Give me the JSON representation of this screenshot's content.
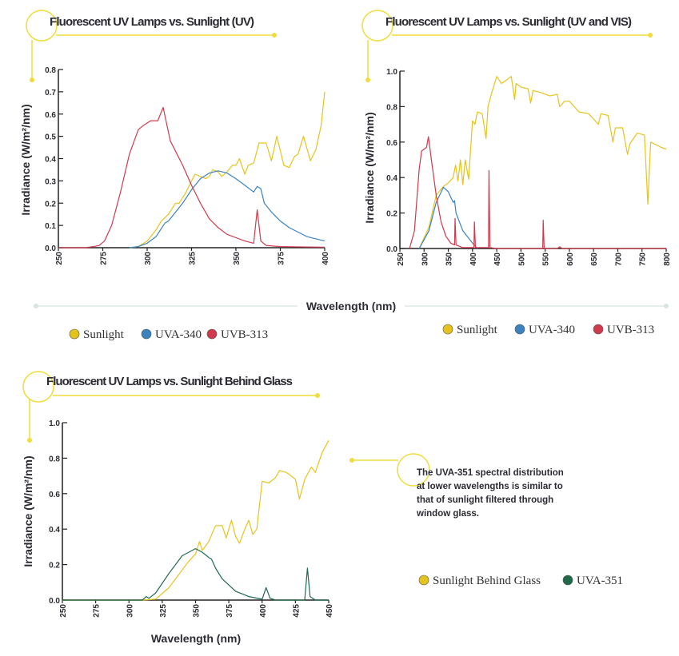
{
  "colors": {
    "sunlight": "#e6c31c",
    "uva340": "#3b82bf",
    "uvb313": "#cf3a4c",
    "uva351": "#1f6a4a",
    "accent": "#f0dc3c"
  },
  "shared_xlabel": "Wavelength (nm)",
  "annotation": {
    "lines": [
      "The UVA-351 spectral distribution",
      "at lower wavelengths is similar to",
      "that of sunlight filtered through",
      "window glass."
    ]
  },
  "chart_data": [
    {
      "type": "line",
      "title": "Fluorescent UV Lamps vs. Sunlight (UV)",
      "xlabel": "",
      "ylabel": "Irradiance (W/m²/nm)",
      "xlim": [
        250,
        400
      ],
      "ylim": [
        0,
        0.8
      ],
      "xticks": [
        "250",
        "275",
        "300",
        "325",
        "350",
        "375",
        "400"
      ],
      "yticks": [
        "0.0",
        "0.1",
        "0.2",
        "0.3",
        "0.4",
        "0.5",
        "0.6",
        "0.7",
        "0.8"
      ],
      "grid": false,
      "legend": "bottom",
      "series": [
        {
          "name": "Sunlight",
          "color": "#e6c31c",
          "x": [
            290,
            295,
            300,
            305,
            308,
            312,
            316,
            318,
            322,
            325,
            327,
            330,
            333,
            335,
            337,
            340,
            342,
            345,
            348,
            350,
            352,
            355,
            357,
            360,
            363,
            367,
            370,
            373,
            377,
            380,
            383,
            385,
            388,
            392,
            395,
            398,
            400
          ],
          "y": [
            0,
            0.005,
            0.03,
            0.08,
            0.12,
            0.15,
            0.2,
            0.2,
            0.25,
            0.3,
            0.33,
            0.32,
            0.31,
            0.32,
            0.35,
            0.34,
            0.32,
            0.34,
            0.37,
            0.37,
            0.4,
            0.33,
            0.37,
            0.38,
            0.47,
            0.47,
            0.39,
            0.5,
            0.37,
            0.36,
            0.41,
            0.42,
            0.5,
            0.39,
            0.44,
            0.55,
            0.7
          ]
        },
        {
          "name": "UVA-340",
          "color": "#3b82bf",
          "x": [
            290,
            295,
            300,
            305,
            310,
            312,
            315,
            320,
            325,
            330,
            335,
            340,
            345,
            350,
            355,
            360,
            362,
            364,
            366,
            370,
            375,
            380,
            385,
            390,
            395,
            400
          ],
          "y": [
            0,
            0.005,
            0.02,
            0.05,
            0.11,
            0.12,
            0.15,
            0.2,
            0.26,
            0.31,
            0.335,
            0.345,
            0.335,
            0.31,
            0.28,
            0.25,
            0.275,
            0.265,
            0.2,
            0.16,
            0.12,
            0.09,
            0.07,
            0.05,
            0.04,
            0.03
          ]
        },
        {
          "name": "UVB-313",
          "color": "#cf3a4c",
          "x": [
            250,
            265,
            270,
            273,
            276,
            280,
            285,
            290,
            295,
            298,
            302,
            306,
            309,
            313,
            320,
            325,
            330,
            335,
            340,
            345,
            350,
            355,
            360,
            362,
            364,
            367,
            375,
            400
          ],
          "y": [
            0,
            0,
            0.005,
            0.01,
            0.03,
            0.1,
            0.25,
            0.42,
            0.53,
            0.55,
            0.57,
            0.57,
            0.63,
            0.48,
            0.37,
            0.28,
            0.2,
            0.13,
            0.09,
            0.06,
            0.045,
            0.03,
            0.02,
            0.17,
            0.03,
            0.01,
            0.005,
            0.002
          ]
        }
      ]
    },
    {
      "type": "line",
      "title": "Fluorescent UV Lamps vs. Sunlight (UV and VIS)",
      "xlabel": "",
      "ylabel": "Irradiance (W/m²/nm)",
      "xlim": [
        250,
        800
      ],
      "ylim": [
        0,
        1.0
      ],
      "xticks": [
        "250",
        "300",
        "350",
        "400",
        "450",
        "500",
        "550",
        "600",
        "650",
        "700",
        "750",
        "800"
      ],
      "yticks": [
        "0.0",
        "0.2",
        "0.4",
        "0.6",
        "0.8",
        "1.0"
      ],
      "grid": false,
      "legend": "bottom",
      "series": [
        {
          "name": "Sunlight",
          "color": "#e6c31c",
          "x": [
            290,
            310,
            325,
            340,
            350,
            360,
            365,
            370,
            375,
            380,
            385,
            392,
            400,
            405,
            410,
            420,
            428,
            432,
            440,
            450,
            460,
            470,
            480,
            487,
            490,
            500,
            515,
            520,
            525,
            540,
            560,
            575,
            580,
            590,
            600,
            620,
            640,
            660,
            665,
            680,
            690,
            695,
            710,
            720,
            725,
            740,
            755,
            762,
            768,
            790,
            800
          ],
          "y": [
            0,
            0.12,
            0.3,
            0.35,
            0.37,
            0.4,
            0.47,
            0.38,
            0.5,
            0.36,
            0.5,
            0.39,
            0.72,
            0.7,
            0.77,
            0.76,
            0.62,
            0.8,
            0.88,
            0.97,
            0.93,
            0.95,
            0.97,
            0.84,
            0.93,
            0.91,
            0.9,
            0.82,
            0.89,
            0.88,
            0.86,
            0.87,
            0.8,
            0.83,
            0.83,
            0.77,
            0.76,
            0.7,
            0.76,
            0.75,
            0.6,
            0.68,
            0.68,
            0.53,
            0.59,
            0.65,
            0.64,
            0.25,
            0.6,
            0.57,
            0.56
          ]
        },
        {
          "name": "UVA-340",
          "color": "#3b82bf",
          "x": [
            290,
            310,
            325,
            340,
            350,
            360,
            363,
            366,
            380,
            400,
            410
          ],
          "y": [
            0,
            0.1,
            0.26,
            0.345,
            0.32,
            0.26,
            0.27,
            0.2,
            0.1,
            0.03,
            0
          ]
        },
        {
          "name": "UVB-313",
          "color": "#cf3a4c",
          "x": [
            270,
            280,
            290,
            295,
            305,
            309,
            315,
            325,
            335,
            345,
            355,
            363,
            364,
            366,
            380,
            403,
            404,
            406,
            433,
            434,
            436,
            450,
            545,
            546,
            548,
            575,
            580,
            585,
            800
          ],
          "y": [
            0,
            0.1,
            0.45,
            0.55,
            0.57,
            0.63,
            0.5,
            0.3,
            0.15,
            0.07,
            0.03,
            0.02,
            0.17,
            0.02,
            0.005,
            0.005,
            0.15,
            0.005,
            0.005,
            0.44,
            0.005,
            0,
            0,
            0.16,
            0,
            0,
            0.01,
            0,
            0
          ]
        }
      ]
    },
    {
      "type": "line",
      "title": "Fluorescent UV Lamps vs. Sunlight Behind Glass",
      "xlabel": "Wavelength (nm)",
      "ylabel": "Irradiance (W/m²/nm)",
      "xlim": [
        250,
        450
      ],
      "ylim": [
        0,
        1.0
      ],
      "xticks": [
        "250",
        "275",
        "300",
        "325",
        "350",
        "375",
        "400",
        "425",
        "450"
      ],
      "yticks": [
        "0.0",
        "0.2",
        "0.4",
        "0.6",
        "0.8",
        "1.0"
      ],
      "grid": false,
      "legend": "right",
      "series": [
        {
          "name": "Sunlight Behind Glass",
          "color": "#e6c31c",
          "x": [
            250,
            310,
            320,
            330,
            340,
            345,
            350,
            353,
            355,
            360,
            365,
            370,
            373,
            377,
            380,
            383,
            387,
            390,
            393,
            396,
            400,
            405,
            410,
            413,
            418,
            420,
            425,
            428,
            432,
            437,
            440,
            445,
            450
          ],
          "y": [
            0,
            0,
            0.005,
            0.07,
            0.17,
            0.22,
            0.26,
            0.33,
            0.28,
            0.33,
            0.42,
            0.42,
            0.35,
            0.45,
            0.36,
            0.32,
            0.4,
            0.45,
            0.37,
            0.4,
            0.67,
            0.66,
            0.69,
            0.73,
            0.72,
            0.71,
            0.68,
            0.57,
            0.68,
            0.75,
            0.72,
            0.83,
            0.9
          ]
        },
        {
          "name": "UVA-351",
          "color": "#1f6a4a",
          "x": [
            250,
            310,
            313,
            315,
            320,
            330,
            340,
            350,
            355,
            360,
            362,
            365,
            370,
            380,
            390,
            400,
            403,
            406,
            410,
            432,
            434,
            436,
            440,
            450
          ],
          "y": [
            0,
            0,
            0.02,
            0.01,
            0.04,
            0.15,
            0.25,
            0.29,
            0.27,
            0.24,
            0.23,
            0.18,
            0.12,
            0.05,
            0.02,
            0.005,
            0.07,
            0.01,
            0,
            0,
            0.18,
            0.02,
            0,
            0
          ]
        }
      ]
    }
  ]
}
